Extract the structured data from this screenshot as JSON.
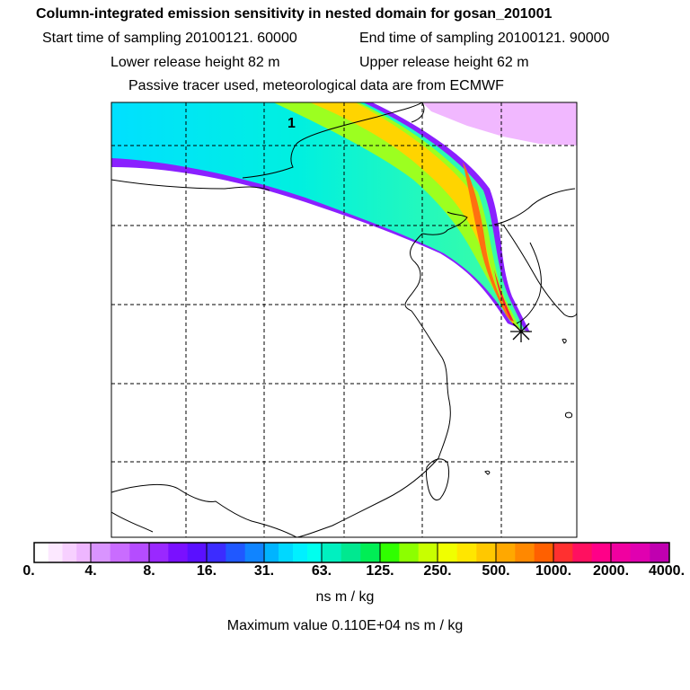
{
  "header": {
    "title": "Column-integrated emission sensitivity in nested domain for gosan_201001",
    "start_time": "Start time of sampling 20100121. 60000",
    "end_time": "End time of sampling 20100121. 90000",
    "lower_release": "Lower release height   82 m",
    "upper_release": "Upper release height   62 m",
    "tracer_note": "Passive tracer used, meteorological data are from ECMWF"
  },
  "map": {
    "plume_label": "1",
    "receptor_marker": "star-asterisk",
    "colors": {
      "plume_edge": "#9b1bff",
      "plume_outer": "#00e5ff",
      "plume_mid": "#7fff00",
      "plume_core": "#ffd000",
      "plume_peak": "#ff3020",
      "top_blob": "#f0a8ff",
      "coast": "#000000",
      "grid": "#000000"
    }
  },
  "colorbar": {
    "tick_labels": [
      "0.",
      "4.",
      "8.",
      "16.",
      "31.",
      "63.",
      "125.",
      "250.",
      "500.",
      "1000.",
      "2000.",
      "4000."
    ],
    "segment_colors": [
      [
        "#ffffff",
        "#fce8ff",
        "#f7d0ff",
        "#eeb6ff"
      ],
      [
        "#d994ff",
        "#c96cff",
        "#b54cff"
      ],
      [
        "#9a28ff",
        "#7a10ff",
        "#5a10ff"
      ],
      [
        "#3c2cff",
        "#2058ff",
        "#1084ff"
      ],
      [
        "#00b4ff",
        "#00d8ff",
        "#00f0ff",
        "#00ffee"
      ],
      [
        "#00f0c0",
        "#00e890",
        "#00ee55"
      ],
      [
        "#30ff00",
        "#8cff00",
        "#c8ff00"
      ],
      [
        "#f0ff00",
        "#ffe600",
        "#ffc800"
      ],
      [
        "#ffa800",
        "#ff8800",
        "#ff6000"
      ],
      [
        "#ff3030",
        "#ff1060",
        "#ff0088"
      ],
      [
        "#f000a0",
        "#e000b0",
        "#c000b0"
      ],
      [
        "#a00090",
        "#800070",
        "#600050"
      ]
    ],
    "unit": "ns m / kg"
  },
  "summary": {
    "max_value_text": "Maximum value  0.110E+04 ns m / kg"
  }
}
